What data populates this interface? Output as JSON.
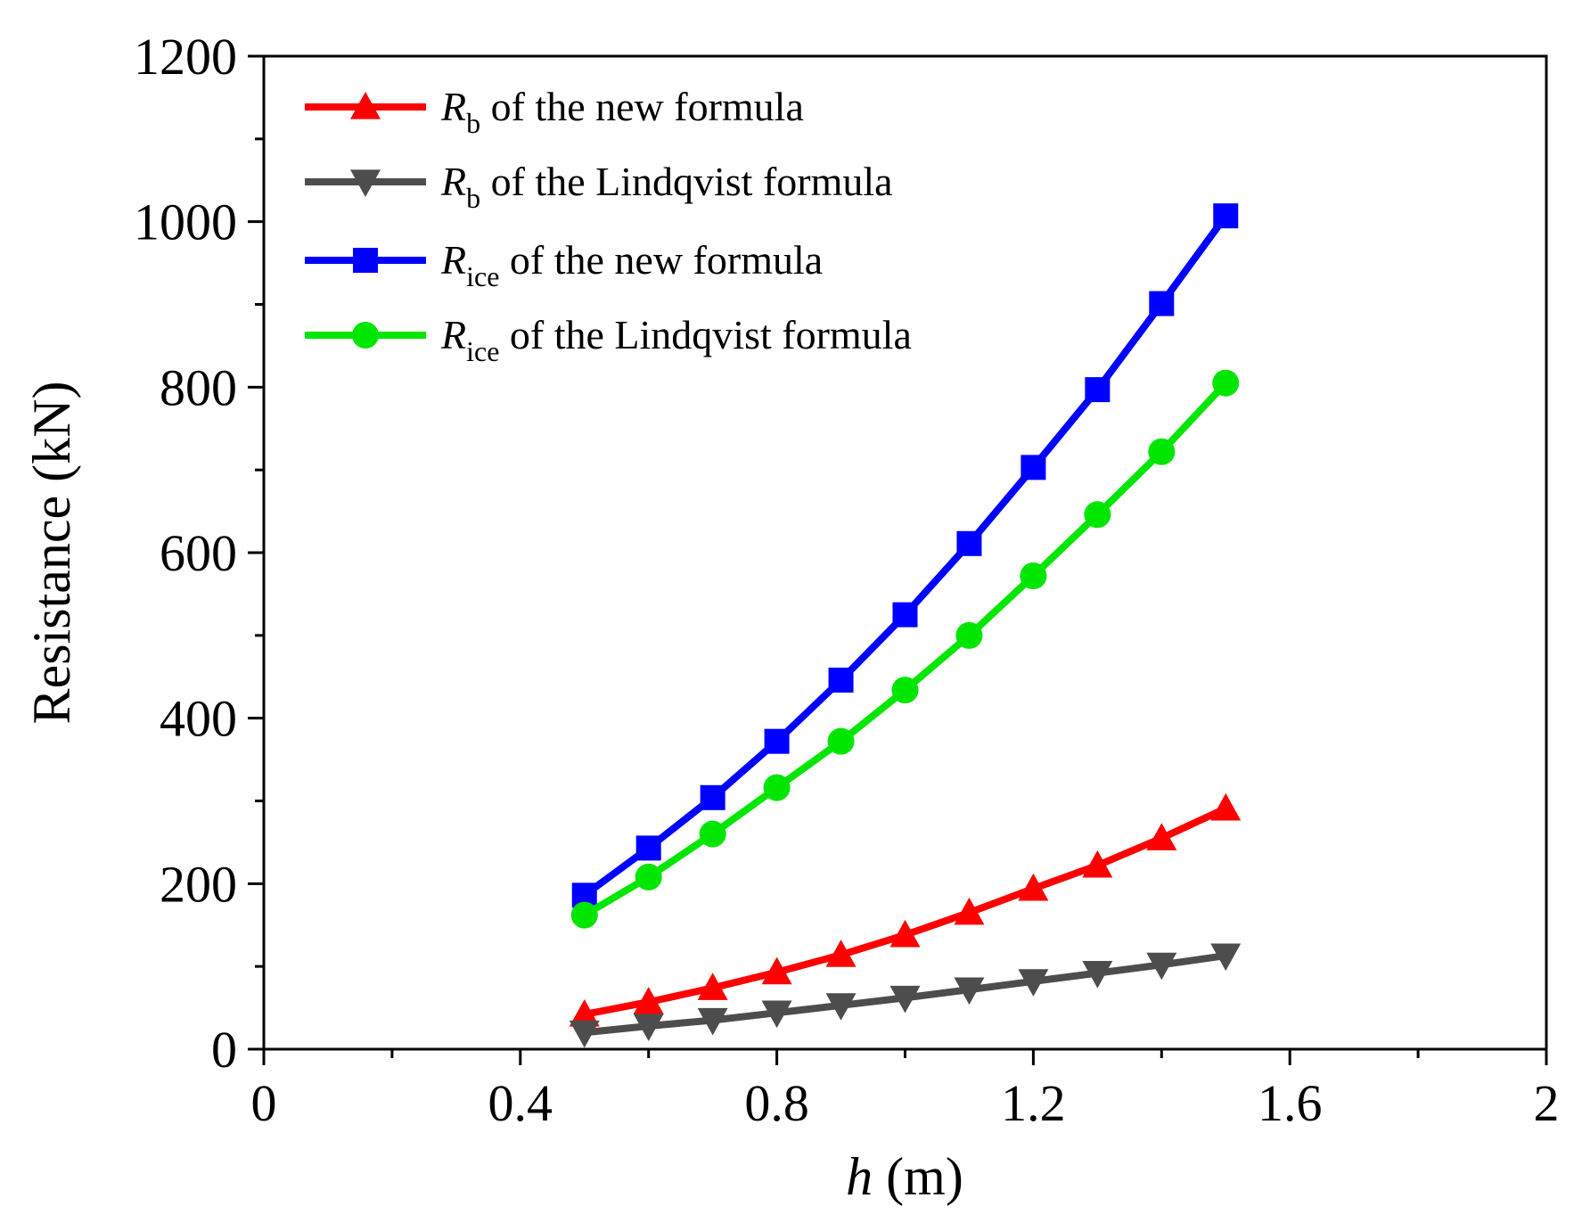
{
  "chart_data": {
    "type": "line",
    "title": "",
    "xlabel": {
      "symbol": "h",
      "unit": " (m)"
    },
    "ylabel": "Resistance (kN)",
    "xlim": [
      0,
      2
    ],
    "ylim": [
      0,
      1200
    ],
    "xticks": [
      0,
      0.4,
      0.8,
      1.2,
      1.6,
      2
    ],
    "xtick_labels": [
      "0",
      "0.4",
      "0.8",
      "1.2",
      "1.6",
      "2"
    ],
    "yticks": [
      0,
      200,
      400,
      600,
      800,
      1000,
      1200
    ],
    "ytick_labels": [
      "0",
      "200",
      "400",
      "600",
      "800",
      "1000",
      "1200"
    ],
    "x": [
      0.5,
      0.6,
      0.7,
      0.8,
      0.9,
      1.0,
      1.1,
      1.2,
      1.3,
      1.4,
      1.5
    ],
    "legend_position": "top-left",
    "series": [
      {
        "name": "Rb of the new formula",
        "symbol": "R",
        "sub": "b",
        "rest": " of the new formula",
        "color": "#ff0000",
        "marker": "triangle-up",
        "values": [
          42,
          57,
          74,
          93,
          114,
          138,
          165,
          194,
          222,
          255,
          291
        ]
      },
      {
        "name": "Rb of the Lindqvist formula",
        "symbol": "R",
        "sub": "b",
        "rest": " of the Lindqvist formula",
        "color": "#4d4d4d",
        "marker": "triangle-down",
        "values": [
          20,
          28,
          35,
          44,
          53,
          62,
          72,
          82,
          92,
          102,
          113
        ]
      },
      {
        "name": "Rice of the new formula",
        "symbol": "R",
        "sub": "ice",
        "rest": " of the new formula",
        "color": "#0000ff",
        "marker": "square",
        "values": [
          186,
          243,
          304,
          372,
          446,
          525,
          611,
          703,
          797,
          901,
          1007
        ]
      },
      {
        "name": "Rice of the Lindqvist formula",
        "symbol": "R",
        "sub": "ice",
        "rest": " of the Lindqvist formula",
        "color": "#00e600",
        "marker": "circle",
        "values": [
          162,
          208,
          260,
          316,
          372,
          434,
          500,
          572,
          646,
          722,
          805
        ]
      }
    ]
  }
}
